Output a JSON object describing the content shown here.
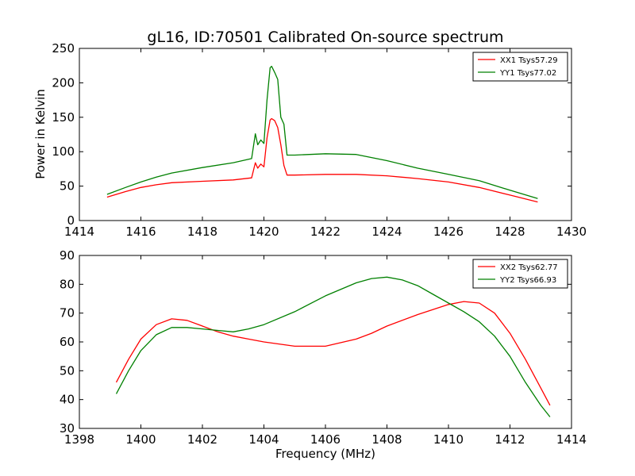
{
  "chart_data": [
    {
      "type": "line",
      "title": "gL16, ID:70501 Calibrated On-source spectrum",
      "xlabel": "",
      "ylabel": "Power in Kelvin",
      "xlim": [
        1414,
        1430
      ],
      "ylim": [
        0,
        250
      ],
      "xticks": [
        1414,
        1416,
        1418,
        1420,
        1422,
        1424,
        1426,
        1428,
        1430
      ],
      "yticks": [
        0,
        50,
        100,
        150,
        200,
        250
      ],
      "grid": false,
      "legend_position": "top-right",
      "series": [
        {
          "name": "XX1 Tsys57.29",
          "color": "#ff0000",
          "x": [
            1414.9,
            1415.5,
            1416.0,
            1416.5,
            1417.0,
            1418.0,
            1419.0,
            1419.6,
            1419.72,
            1419.8,
            1419.9,
            1420.0,
            1420.1,
            1420.2,
            1420.25,
            1420.35,
            1420.45,
            1420.55,
            1420.65,
            1420.75,
            1421.0,
            1422.0,
            1423.0,
            1424.0,
            1425.0,
            1426.0,
            1427.0,
            1428.0,
            1428.9
          ],
          "values": [
            34,
            42,
            48,
            52,
            55,
            57,
            59,
            62,
            84,
            76,
            82,
            78,
            120,
            146,
            148,
            145,
            135,
            110,
            80,
            66,
            66,
            67,
            67,
            65,
            61,
            56,
            48,
            37,
            27
          ]
        },
        {
          "name": "YY1 Tsys77.02",
          "color": "#008000",
          "x": [
            1414.9,
            1415.5,
            1416.0,
            1416.5,
            1417.0,
            1418.0,
            1419.0,
            1419.6,
            1419.72,
            1419.8,
            1419.9,
            1420.0,
            1420.1,
            1420.2,
            1420.25,
            1420.35,
            1420.45,
            1420.55,
            1420.65,
            1420.75,
            1421.0,
            1422.0,
            1423.0,
            1424.0,
            1425.0,
            1426.0,
            1427.0,
            1428.0,
            1428.9
          ],
          "values": [
            38,
            48,
            56,
            63,
            69,
            77,
            84,
            90,
            126,
            110,
            117,
            112,
            175,
            222,
            224,
            215,
            205,
            150,
            140,
            95,
            95,
            97,
            96,
            87,
            76,
            67,
            58,
            44,
            32
          ]
        }
      ]
    },
    {
      "type": "line",
      "title": "",
      "xlabel": "Frequency (MHz)",
      "ylabel": "",
      "xlim": [
        1398,
        1414
      ],
      "ylim": [
        30,
        90
      ],
      "xticks": [
        1398,
        1400,
        1402,
        1404,
        1406,
        1408,
        1410,
        1412,
        1414
      ],
      "yticks": [
        30,
        40,
        50,
        60,
        70,
        80,
        90
      ],
      "grid": false,
      "legend_position": "top-right",
      "series": [
        {
          "name": "XX2 Tsys62.77",
          "color": "#ff0000",
          "x": [
            1399.2,
            1399.6,
            1400.0,
            1400.5,
            1401.0,
            1401.5,
            1402.0,
            1402.5,
            1403.0,
            1403.5,
            1404.0,
            1405.0,
            1406.0,
            1407.0,
            1407.5,
            1408.0,
            1409.0,
            1410.0,
            1410.5,
            1411.0,
            1411.5,
            1412.0,
            1412.5,
            1413.0,
            1413.3
          ],
          "values": [
            46,
            54,
            61,
            66,
            68,
            67.5,
            65.5,
            63.5,
            62,
            61,
            60,
            58.5,
            58.5,
            61,
            63,
            65.5,
            69.5,
            73,
            74,
            73.5,
            70,
            63,
            54,
            44,
            38
          ]
        },
        {
          "name": "YY2 Tsys66.93",
          "color": "#008000",
          "x": [
            1399.2,
            1399.6,
            1400.0,
            1400.5,
            1401.0,
            1401.5,
            1402.0,
            1402.5,
            1403.0,
            1403.5,
            1404.0,
            1405.0,
            1406.0,
            1407.0,
            1407.5,
            1408.0,
            1408.5,
            1409.0,
            1409.5,
            1410.0,
            1410.5,
            1411.0,
            1411.5,
            1412.0,
            1412.5,
            1413.0,
            1413.3
          ],
          "values": [
            42,
            50,
            57,
            62.5,
            65,
            65,
            64.5,
            64,
            63.5,
            64.5,
            66,
            70.5,
            76,
            80.5,
            82,
            82.5,
            81.5,
            79.5,
            76.5,
            73.5,
            70.5,
            67,
            62,
            55,
            46,
            38,
            34
          ]
        }
      ]
    }
  ]
}
